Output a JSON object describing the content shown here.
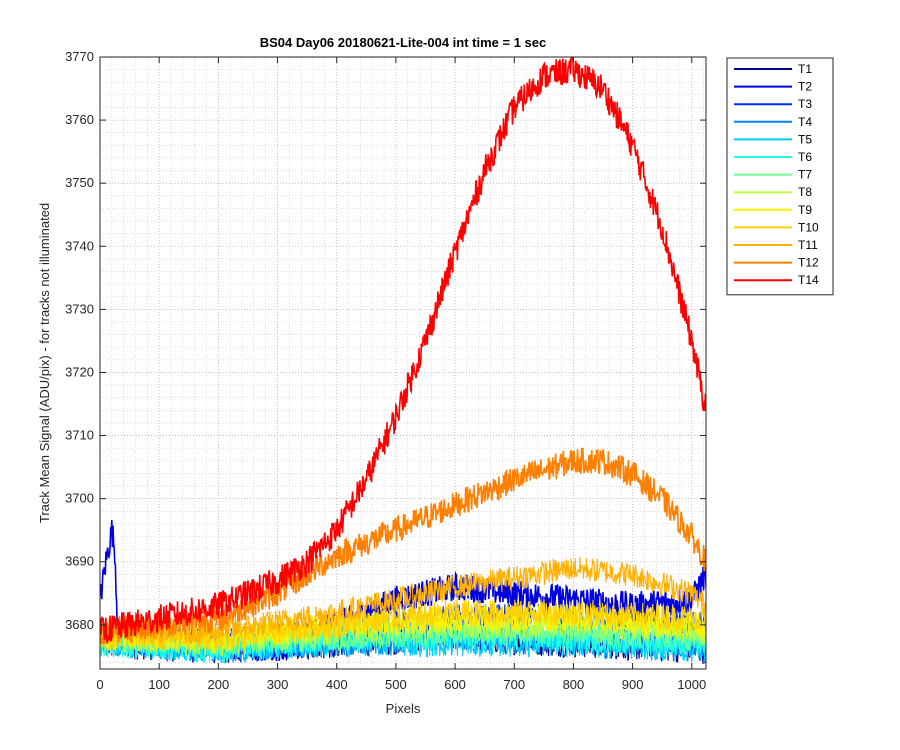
{
  "chart_data": {
    "type": "line",
    "title": "BS04 Day06 20180621-Lite-004 int time = 1 sec",
    "xlabel": "Pixels",
    "ylabel": "Track Mean Signal (ADU/pix) - for tracks not illuminated",
    "xlim": [
      0,
      1024
    ],
    "ylim": [
      3673,
      3770
    ],
    "xticks": [
      0,
      100,
      200,
      300,
      400,
      500,
      600,
      700,
      800,
      900,
      1000
    ],
    "yticks": [
      3680,
      3690,
      3700,
      3710,
      3720,
      3730,
      3740,
      3750,
      3760,
      3770
    ],
    "grid": "on, with minor grid",
    "legend_placement": "outside-right-top",
    "series": [
      {
        "name": "T1",
        "color": "#00008F",
        "base": [
          [
            0,
            3677
          ],
          [
            200,
            3676
          ],
          [
            400,
            3677
          ],
          [
            600,
            3678
          ],
          [
            800,
            3677
          ],
          [
            1024,
            3676
          ]
        ],
        "noise": 1.6
      },
      {
        "name": "T2",
        "color": "#0000DF",
        "base": [
          [
            0,
            3684
          ],
          [
            10,
            3690
          ],
          [
            20,
            3695
          ],
          [
            25,
            3692
          ],
          [
            30,
            3679
          ],
          [
            60,
            3678
          ],
          [
            200,
            3677
          ],
          [
            300,
            3676
          ],
          [
            400,
            3680
          ],
          [
            500,
            3684
          ],
          [
            600,
            3686
          ],
          [
            700,
            3685
          ],
          [
            800,
            3684
          ],
          [
            900,
            3683
          ],
          [
            1000,
            3684
          ],
          [
            1024,
            3688
          ]
        ],
        "noise": 1.6
      },
      {
        "name": "T3",
        "color": "#0030FF",
        "base": [
          [
            0,
            3678
          ],
          [
            200,
            3677
          ],
          [
            400,
            3679
          ],
          [
            600,
            3681
          ],
          [
            800,
            3681
          ],
          [
            1024,
            3680
          ]
        ],
        "noise": 1.7
      },
      {
        "name": "T4",
        "color": "#0080FF",
        "base": [
          [
            0,
            3677
          ],
          [
            200,
            3676
          ],
          [
            400,
            3677
          ],
          [
            600,
            3678
          ],
          [
            800,
            3678
          ],
          [
            1024,
            3677
          ]
        ],
        "noise": 1.5
      },
      {
        "name": "T5",
        "color": "#00CFFF",
        "base": [
          [
            0,
            3677
          ],
          [
            200,
            3676
          ],
          [
            400,
            3677
          ],
          [
            600,
            3677
          ],
          [
            800,
            3677
          ],
          [
            1024,
            3676
          ]
        ],
        "noise": 1.5
      },
      {
        "name": "T6",
        "color": "#20FFDF",
        "base": [
          [
            0,
            3677
          ],
          [
            200,
            3676
          ],
          [
            400,
            3678
          ],
          [
            600,
            3678
          ],
          [
            800,
            3678
          ],
          [
            1024,
            3677
          ]
        ],
        "noise": 1.5
      },
      {
        "name": "T7",
        "color": "#70FF8F",
        "base": [
          [
            0,
            3678
          ],
          [
            200,
            3677
          ],
          [
            400,
            3678
          ],
          [
            600,
            3679
          ],
          [
            800,
            3679
          ],
          [
            1024,
            3678
          ]
        ],
        "noise": 1.5
      },
      {
        "name": "T8",
        "color": "#BFFF40",
        "base": [
          [
            0,
            3678
          ],
          [
            200,
            3677
          ],
          [
            400,
            3679
          ],
          [
            600,
            3680
          ],
          [
            800,
            3680
          ],
          [
            1024,
            3679
          ]
        ],
        "noise": 1.5
      },
      {
        "name": "T9",
        "color": "#FFEF00",
        "base": [
          [
            0,
            3678
          ],
          [
            200,
            3678
          ],
          [
            400,
            3680
          ],
          [
            600,
            3681
          ],
          [
            800,
            3681
          ],
          [
            1024,
            3680
          ]
        ],
        "noise": 1.5
      },
      {
        "name": "T10",
        "color": "#FFD000",
        "base": [
          [
            0,
            3678
          ],
          [
            200,
            3678
          ],
          [
            400,
            3680
          ],
          [
            600,
            3682
          ],
          [
            800,
            3682
          ],
          [
            1024,
            3681
          ]
        ],
        "noise": 1.5
      },
      {
        "name": "T11",
        "color": "#FFB000",
        "base": [
          [
            0,
            3679
          ],
          [
            200,
            3679
          ],
          [
            400,
            3682
          ],
          [
            600,
            3686
          ],
          [
            800,
            3689
          ],
          [
            900,
            3688
          ],
          [
            1000,
            3685
          ],
          [
            1024,
            3683
          ]
        ],
        "noise": 1.4
      },
      {
        "name": "T12",
        "color": "#FF7F00",
        "base": [
          [
            0,
            3679
          ],
          [
            200,
            3681
          ],
          [
            300,
            3685
          ],
          [
            400,
            3691
          ],
          [
            500,
            3695
          ],
          [
            600,
            3699
          ],
          [
            700,
            3703
          ],
          [
            800,
            3706
          ],
          [
            850,
            3706
          ],
          [
            900,
            3704
          ],
          [
            950,
            3700
          ],
          [
            1000,
            3694
          ],
          [
            1024,
            3690
          ]
        ],
        "noise": 1.5
      },
      {
        "name": "T14",
        "color": "#FF0000",
        "base": [
          [
            0,
            3679
          ],
          [
            100,
            3681
          ],
          [
            200,
            3683
          ],
          [
            300,
            3687
          ],
          [
            350,
            3690
          ],
          [
            400,
            3695
          ],
          [
            450,
            3703
          ],
          [
            500,
            3713
          ],
          [
            550,
            3725
          ],
          [
            600,
            3739
          ],
          [
            650,
            3752
          ],
          [
            700,
            3762
          ],
          [
            750,
            3767
          ],
          [
            800,
            3768
          ],
          [
            850,
            3765
          ],
          [
            900,
            3756
          ],
          [
            950,
            3743
          ],
          [
            1000,
            3725
          ],
          [
            1024,
            3714
          ]
        ],
        "noise": 1.6
      }
    ]
  }
}
